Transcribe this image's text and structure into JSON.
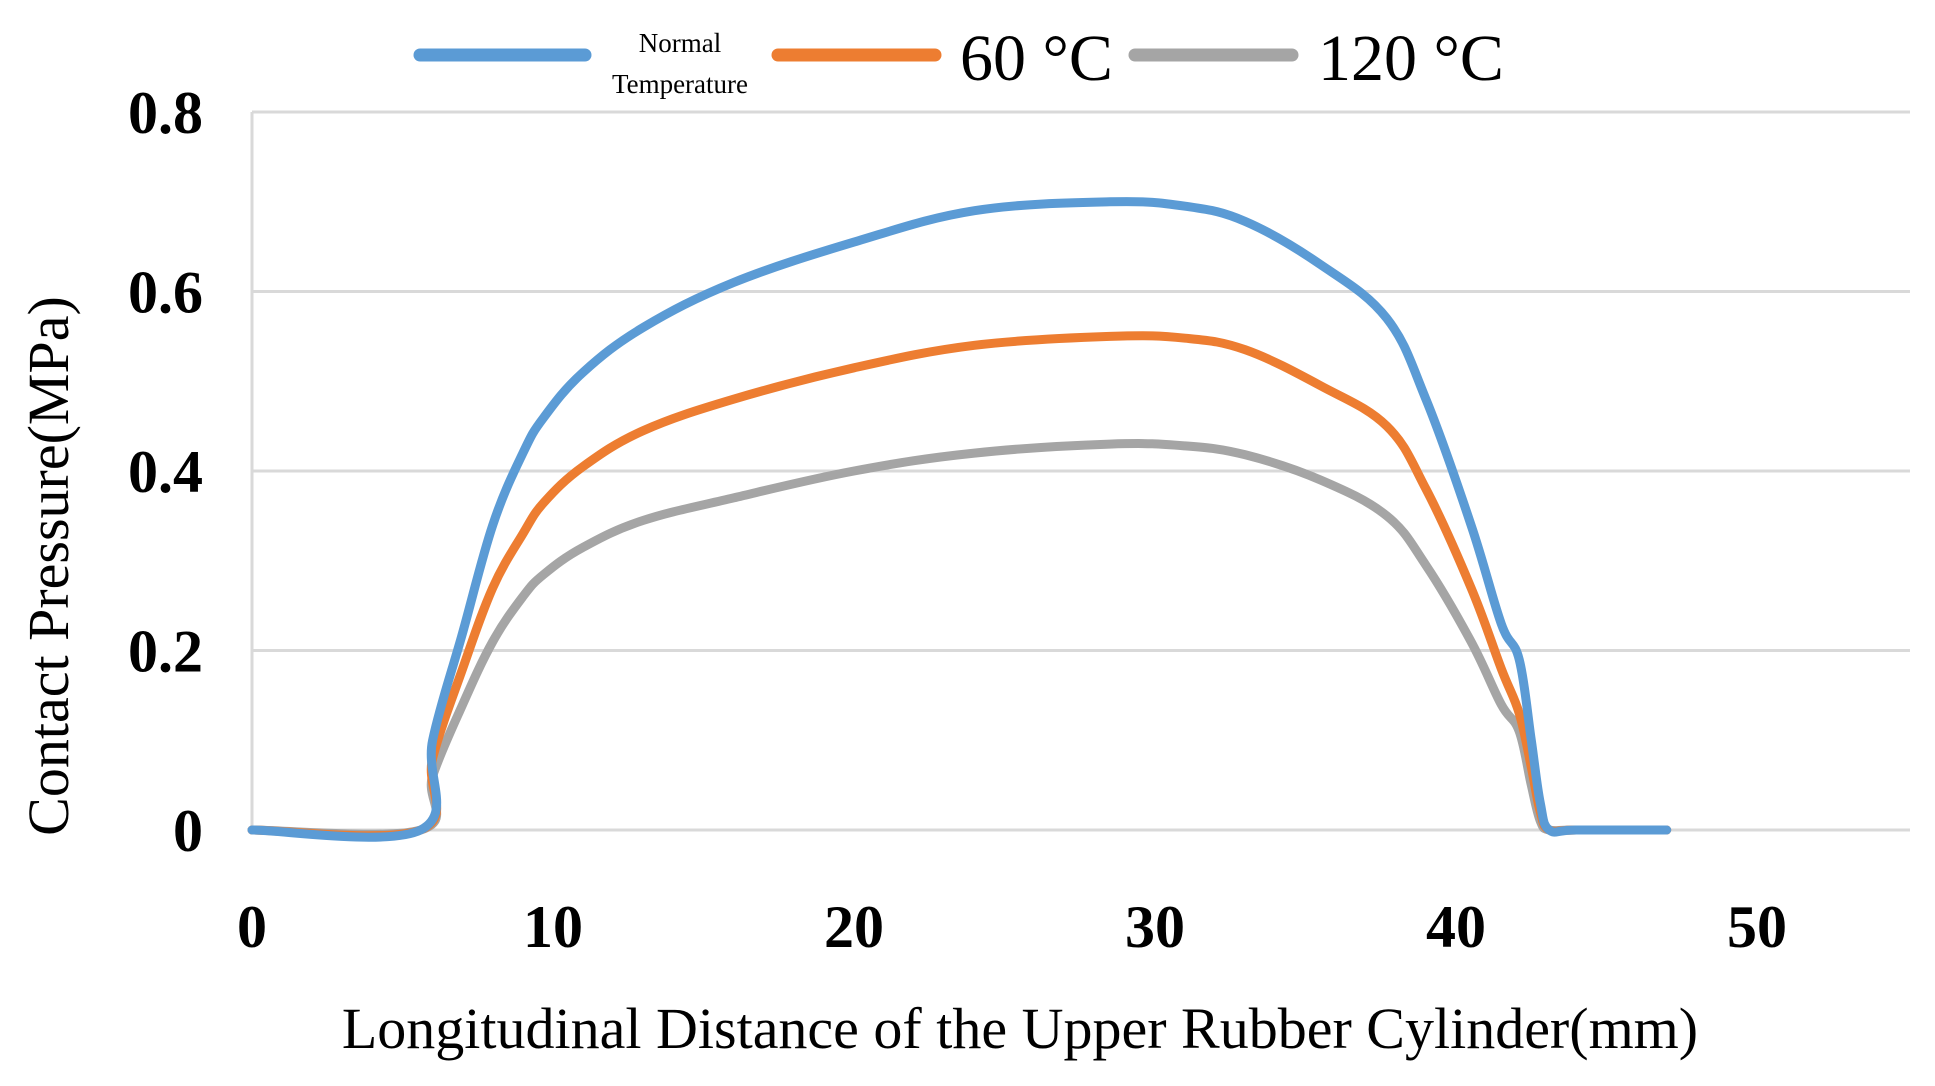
{
  "chart_data": {
    "type": "line",
    "title": "",
    "xlabel": "Longitudinal Distance of the Upper Rubber Cylinder(mm)",
    "ylabel": "Contact Pressure(MPa)",
    "xlim": [
      0,
      55
    ],
    "ylim": [
      0,
      0.8
    ],
    "xticks": [
      0,
      10,
      20,
      30,
      40,
      50
    ],
    "yticks": [
      0,
      0.2,
      0.4,
      0.6,
      0.8
    ],
    "xtick_labels": [
      "0",
      "10",
      "20",
      "30",
      "40",
      "50"
    ],
    "ytick_labels": [
      "0",
      "0.2",
      "0.4",
      "0.6",
      "0.8"
    ],
    "grid": "horizontal",
    "legend_position": "top",
    "series": [
      {
        "name": "Normal Temperature",
        "legend_lines": [
          "Normal",
          "Temperature"
        ],
        "color": "#5B9BD5",
        "x": [
          0,
          5.6,
          6.0,
          7.0,
          8.0,
          9.0,
          9.7,
          11.0,
          13.0,
          16.0,
          20.0,
          24.0,
          28.5,
          31.0,
          33.0,
          35.5,
          37.7,
          39.0,
          40.5,
          41.5,
          42.1,
          42.5,
          42.8,
          43.1,
          44.0,
          47.0
        ],
        "y": [
          0,
          0,
          0.1,
          0.22,
          0.34,
          0.42,
          0.46,
          0.51,
          0.56,
          0.61,
          0.655,
          0.69,
          0.7,
          0.695,
          0.678,
          0.63,
          0.57,
          0.48,
          0.34,
          0.23,
          0.19,
          0.1,
          0.03,
          0,
          0,
          0
        ]
      },
      {
        "name": "60 °C",
        "color": "#ED7D31",
        "x": [
          0,
          5.6,
          6.0,
          7.0,
          8.0,
          9.0,
          9.7,
          11.0,
          13.0,
          16.0,
          20.0,
          24.0,
          28.5,
          31.0,
          33.0,
          35.5,
          37.7,
          39.0,
          40.5,
          41.5,
          42.1,
          42.5,
          42.8,
          43.1,
          44.0,
          47.0
        ],
        "y": [
          0,
          0,
          0.08,
          0.18,
          0.27,
          0.33,
          0.365,
          0.405,
          0.445,
          0.48,
          0.515,
          0.54,
          0.55,
          0.548,
          0.535,
          0.495,
          0.45,
          0.38,
          0.27,
          0.18,
          0.13,
          0.07,
          0.02,
          0,
          0,
          0
        ]
      },
      {
        "name": "120 °C",
        "color": "#A5A5A5",
        "x": [
          0,
          5.6,
          6.0,
          7.0,
          8.0,
          9.0,
          9.7,
          11.0,
          13.0,
          16.0,
          20.0,
          24.0,
          28.5,
          31.0,
          33.0,
          35.5,
          37.7,
          39.0,
          40.5,
          41.5,
          42.1,
          42.5,
          42.8,
          43.1,
          44.0,
          47.0
        ],
        "y": [
          0,
          0,
          0.06,
          0.14,
          0.21,
          0.26,
          0.285,
          0.315,
          0.345,
          0.37,
          0.4,
          0.42,
          0.43,
          0.428,
          0.418,
          0.39,
          0.35,
          0.295,
          0.21,
          0.14,
          0.11,
          0.05,
          0.01,
          0,
          0,
          0
        ]
      }
    ]
  }
}
